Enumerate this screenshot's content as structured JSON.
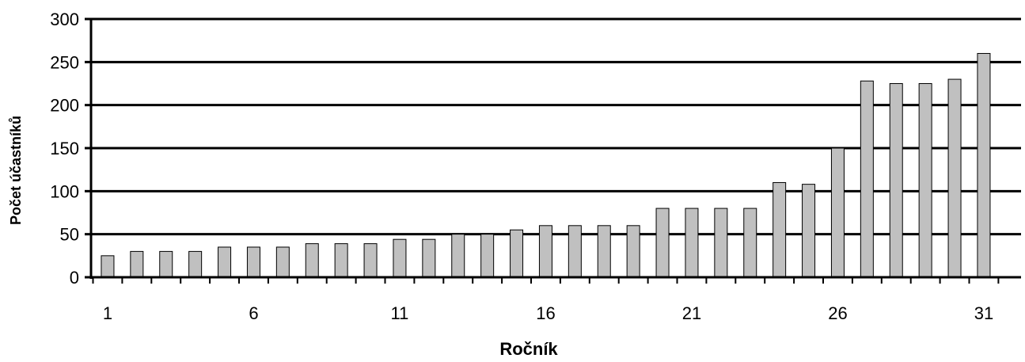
{
  "chart_data": {
    "type": "bar",
    "title": "",
    "xlabel": "Ročník",
    "ylabel": "Počet účastníků",
    "ylim": [
      0,
      300
    ],
    "yticks": [
      0,
      50,
      100,
      150,
      200,
      250,
      300
    ],
    "grid": true,
    "categories": [
      1,
      2,
      3,
      4,
      5,
      6,
      7,
      8,
      9,
      10,
      11,
      12,
      13,
      14,
      15,
      16,
      17,
      18,
      19,
      20,
      21,
      22,
      23,
      24,
      25,
      26,
      27,
      28,
      29,
      30,
      31
    ],
    "x_tick_labels": [
      {
        "category": 1,
        "label": "1"
      },
      {
        "category": 6,
        "label": "6"
      },
      {
        "category": 11,
        "label": "11"
      },
      {
        "category": 16,
        "label": "16"
      },
      {
        "category": 21,
        "label": "21"
      },
      {
        "category": 26,
        "label": "26"
      },
      {
        "category": 31,
        "label": "31"
      }
    ],
    "values": [
      25,
      30,
      30,
      30,
      35,
      35,
      35,
      39,
      39,
      39,
      44,
      44,
      50,
      50,
      55,
      60,
      60,
      60,
      60,
      80,
      80,
      80,
      80,
      110,
      108,
      150,
      228,
      225,
      225,
      230,
      260
    ],
    "colors": {
      "bar_fill": "#c0c0c0",
      "bar_stroke": "#000000",
      "grid": "#000000"
    }
  }
}
